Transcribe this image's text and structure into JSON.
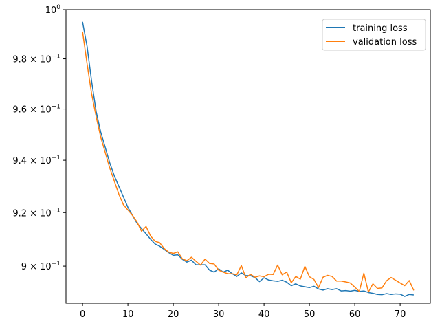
{
  "chart_data": {
    "type": "line",
    "title": "",
    "xlabel": "",
    "ylabel": "",
    "xlim": [
      -3.65,
      76.65
    ],
    "ylim": [
      0.8864,
      1.0
    ],
    "y_scale": "log",
    "grid": false,
    "legend_position": "top-right",
    "x_ticks": [
      0,
      10,
      20,
      30,
      40,
      50,
      60,
      70
    ],
    "y_ticks": [
      {
        "value": 0.9,
        "base": "9 × 10",
        "exp": "−1"
      },
      {
        "value": 0.92,
        "base": "9.2 × 10",
        "exp": "−1"
      },
      {
        "value": 0.94,
        "base": "9.4 × 10",
        "exp": "−1"
      },
      {
        "value": 0.96,
        "base": "9.6 × 10",
        "exp": "−1"
      },
      {
        "value": 0.98,
        "base": "9.8 × 10",
        "exp": "−1"
      },
      {
        "value": 1.0,
        "base": "10",
        "exp": "0"
      }
    ],
    "series": [
      {
        "name": "training loss",
        "color": "#1f77b4",
        "x": [
          0,
          1,
          2,
          3,
          4,
          5,
          6,
          7,
          8,
          9,
          10,
          11,
          12,
          13,
          14,
          15,
          16,
          17,
          18,
          19,
          20,
          21,
          22,
          23,
          24,
          25,
          26,
          27,
          28,
          29,
          30,
          31,
          32,
          33,
          34,
          35,
          36,
          37,
          38,
          39,
          40,
          41,
          42,
          43,
          44,
          45,
          46,
          47,
          48,
          49,
          50,
          51,
          52,
          53,
          54,
          55,
          56,
          57,
          58,
          59,
          60,
          61,
          62,
          63,
          64,
          65,
          66,
          67,
          68,
          69,
          70,
          71,
          72,
          73
        ],
        "y": [
          0.995,
          0.985,
          0.971,
          0.959,
          0.951,
          0.945,
          0.939,
          0.934,
          0.93,
          0.926,
          0.922,
          0.919,
          0.916,
          0.914,
          0.912,
          0.91,
          0.9082,
          0.9074,
          0.9062,
          0.905,
          0.904,
          0.9042,
          0.9025,
          0.9015,
          0.9022,
          0.9005,
          0.9005,
          0.9005,
          0.8985,
          0.8978,
          0.899,
          0.8978,
          0.8985,
          0.8972,
          0.8962,
          0.8975,
          0.8965,
          0.8965,
          0.8958,
          0.8943,
          0.8957,
          0.8949,
          0.8946,
          0.8944,
          0.8948,
          0.8941,
          0.8928,
          0.8935,
          0.8927,
          0.8924,
          0.8921,
          0.8926,
          0.8916,
          0.8912,
          0.8917,
          0.8914,
          0.8917,
          0.8909,
          0.891,
          0.8908,
          0.8911,
          0.8907,
          0.8909,
          0.8903,
          0.89,
          0.8896,
          0.8895,
          0.8899,
          0.8896,
          0.8898,
          0.8897,
          0.8889,
          0.8896,
          0.8894
        ]
      },
      {
        "name": "validation loss",
        "color": "#ff7f0e",
        "x": [
          0,
          1,
          2,
          3,
          4,
          5,
          6,
          7,
          8,
          9,
          10,
          11,
          12,
          13,
          14,
          15,
          16,
          17,
          18,
          19,
          20,
          21,
          22,
          23,
          24,
          25,
          26,
          27,
          28,
          29,
          30,
          31,
          32,
          33,
          34,
          35,
          36,
          37,
          38,
          39,
          40,
          41,
          42,
          43,
          44,
          45,
          46,
          47,
          48,
          49,
          50,
          51,
          52,
          53,
          54,
          55,
          56,
          57,
          58,
          59,
          60,
          61,
          62,
          63,
          64,
          65,
          66,
          67,
          68,
          69,
          70,
          71,
          72,
          73
        ],
        "y": [
          0.991,
          0.978,
          0.966,
          0.957,
          0.949,
          0.943,
          0.937,
          0.932,
          0.927,
          0.923,
          0.921,
          0.919,
          0.9165,
          0.913,
          0.9148,
          0.9112,
          0.9092,
          0.9087,
          0.9065,
          0.9052,
          0.9047,
          0.9053,
          0.9027,
          0.902,
          0.9033,
          0.9018,
          0.9004,
          0.9026,
          0.901,
          0.9008,
          0.8985,
          0.8978,
          0.8972,
          0.8972,
          0.8968,
          0.9002,
          0.8957,
          0.897,
          0.8959,
          0.8964,
          0.8961,
          0.897,
          0.8969,
          0.9004,
          0.8968,
          0.8978,
          0.8939,
          0.8962,
          0.8952,
          0.8999,
          0.8961,
          0.8951,
          0.8921,
          0.8959,
          0.8966,
          0.8962,
          0.8945,
          0.8945,
          0.8942,
          0.8938,
          0.8923,
          0.8907,
          0.8974,
          0.8905,
          0.8935,
          0.8918,
          0.892,
          0.8946,
          0.8958,
          0.8948,
          0.8938,
          0.8928,
          0.8947,
          0.8911
        ]
      }
    ]
  }
}
